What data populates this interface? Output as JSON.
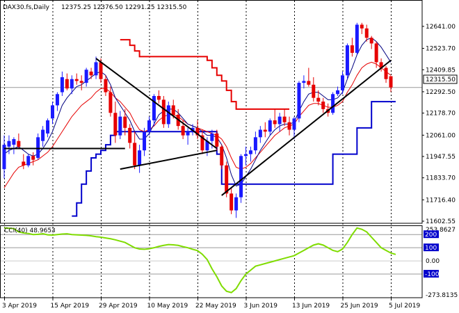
{
  "header": {
    "symbol": "DAX30.fs,Daily",
    "ohlc": "12375.25 12376.50 12291.25 12315.50"
  },
  "price_badge": "12315.50",
  "cci_header": "CCI(40) 48.9653",
  "colors": {
    "bull": "#1a1aff",
    "bear": "#e60000",
    "band_upper": "#e60000",
    "band_lower": "#0000cc",
    "ma_fast": "#000080",
    "ma_slow": "#e60000",
    "trend": "#000000",
    "cci_line": "#7fdc00",
    "badge_bg": "#0000cc",
    "badge_text": "#ffffff",
    "price_badge_bg": "#ffffff"
  },
  "chart_data": [
    {
      "type": "candlestick",
      "title": "DAX30.fs,Daily",
      "ylim": [
        11602.55,
        12700
      ],
      "y_ticks": [
        "12641.00",
        "12523.70",
        "12409.85",
        "12292.50",
        "12178.70",
        "12061.00",
        "11947.55",
        "11833.70",
        "11716.40",
        "11602.55"
      ],
      "x_ticks": [
        "3 Apr 2019",
        "15 Apr 2019",
        "29 Apr 2019",
        "10 May 2019",
        "22 May 2019",
        "3 Jun 2019",
        "13 Jun 2019",
        "25 Jun 2019",
        "5 Jul 2019"
      ],
      "x_tick_index": [
        0,
        10,
        20,
        30,
        40,
        50,
        60,
        70,
        80
      ],
      "grid": "vertical dotted at period separators",
      "candles": [
        {
          "o": 11880,
          "h": 12060,
          "l": 11830,
          "c": 12010
        },
        {
          "o": 12000,
          "h": 12060,
          "l": 11960,
          "c": 12030
        },
        {
          "o": 12010,
          "h": 12050,
          "l": 11960,
          "c": 12040
        },
        {
          "o": 12030,
          "h": 12070,
          "l": 11990,
          "c": 12000
        },
        {
          "o": 11920,
          "h": 11960,
          "l": 11880,
          "c": 11900
        },
        {
          "o": 11900,
          "h": 11960,
          "l": 11890,
          "c": 11950
        },
        {
          "o": 11950,
          "h": 11970,
          "l": 11900,
          "c": 11930
        },
        {
          "o": 11940,
          "h": 12070,
          "l": 11930,
          "c": 12050
        },
        {
          "o": 12030,
          "h": 12110,
          "l": 12000,
          "c": 12090
        },
        {
          "o": 12070,
          "h": 12150,
          "l": 12050,
          "c": 12140
        },
        {
          "o": 12150,
          "h": 12240,
          "l": 12120,
          "c": 12220
        },
        {
          "o": 12220,
          "h": 12290,
          "l": 12190,
          "c": 12280
        },
        {
          "o": 12290,
          "h": 12400,
          "l": 12270,
          "c": 12370
        },
        {
          "o": 12360,
          "h": 12390,
          "l": 12300,
          "c": 12310
        },
        {
          "o": 12310,
          "h": 12380,
          "l": 12280,
          "c": 12360
        },
        {
          "o": 12360,
          "h": 12390,
          "l": 12330,
          "c": 12350
        },
        {
          "o": 12350,
          "h": 12380,
          "l": 12300,
          "c": 12340
        },
        {
          "o": 12340,
          "h": 12420,
          "l": 12320,
          "c": 12410
        },
        {
          "o": 12400,
          "h": 12420,
          "l": 12360,
          "c": 12380
        },
        {
          "o": 12380,
          "h": 12480,
          "l": 12360,
          "c": 12450
        },
        {
          "o": 12450,
          "h": 12470,
          "l": 12340,
          "c": 12360
        },
        {
          "o": 12360,
          "h": 12380,
          "l": 12270,
          "c": 12290
        },
        {
          "o": 12290,
          "h": 12320,
          "l": 12160,
          "c": 12180
        },
        {
          "o": 12180,
          "h": 12240,
          "l": 12020,
          "c": 12060
        },
        {
          "o": 12060,
          "h": 12190,
          "l": 12040,
          "c": 12160
        },
        {
          "o": 12160,
          "h": 12200,
          "l": 12060,
          "c": 12100
        },
        {
          "o": 12100,
          "h": 12120,
          "l": 11990,
          "c": 12020
        },
        {
          "o": 12020,
          "h": 12080,
          "l": 11880,
          "c": 11900
        },
        {
          "o": 11900,
          "h": 12010,
          "l": 11860,
          "c": 11980
        },
        {
          "o": 11980,
          "h": 12100,
          "l": 11950,
          "c": 12080
        },
        {
          "o": 12080,
          "h": 12160,
          "l": 12060,
          "c": 12140
        },
        {
          "o": 12140,
          "h": 12280,
          "l": 12110,
          "c": 12270
        },
        {
          "o": 12270,
          "h": 12300,
          "l": 12230,
          "c": 12250
        },
        {
          "o": 12250,
          "h": 12270,
          "l": 12100,
          "c": 12120
        },
        {
          "o": 12120,
          "h": 12240,
          "l": 12100,
          "c": 12220
        },
        {
          "o": 12220,
          "h": 12250,
          "l": 12150,
          "c": 12170
        },
        {
          "o": 12170,
          "h": 12200,
          "l": 12090,
          "c": 12110
        },
        {
          "o": 12110,
          "h": 12140,
          "l": 12040,
          "c": 12060
        },
        {
          "o": 12060,
          "h": 12100,
          "l": 12010,
          "c": 12080
        },
        {
          "o": 12080,
          "h": 12120,
          "l": 12060,
          "c": 12100
        },
        {
          "o": 12100,
          "h": 12140,
          "l": 12040,
          "c": 12060
        },
        {
          "o": 12060,
          "h": 12090,
          "l": 11960,
          "c": 11980
        },
        {
          "o": 11980,
          "h": 12050,
          "l": 11950,
          "c": 12030
        },
        {
          "o": 12030,
          "h": 12090,
          "l": 11990,
          "c": 12070
        },
        {
          "o": 12070,
          "h": 12090,
          "l": 11980,
          "c": 12000
        },
        {
          "o": 12000,
          "h": 12010,
          "l": 11880,
          "c": 11900
        },
        {
          "o": 11900,
          "h": 11920,
          "l": 11730,
          "c": 11750
        },
        {
          "o": 11750,
          "h": 11780,
          "l": 11640,
          "c": 11660
        },
        {
          "o": 11660,
          "h": 11750,
          "l": 11620,
          "c": 11730
        },
        {
          "o": 11730,
          "h": 11960,
          "l": 11700,
          "c": 11950
        },
        {
          "o": 11950,
          "h": 12000,
          "l": 11900,
          "c": 11960
        },
        {
          "o": 11960,
          "h": 12000,
          "l": 11920,
          "c": 11980
        },
        {
          "o": 11980,
          "h": 12080,
          "l": 11960,
          "c": 12050
        },
        {
          "o": 12050,
          "h": 12110,
          "l": 12020,
          "c": 12090
        },
        {
          "o": 12090,
          "h": 12130,
          "l": 12050,
          "c": 12080
        },
        {
          "o": 12080,
          "h": 12150,
          "l": 12060,
          "c": 12140
        },
        {
          "o": 12140,
          "h": 12200,
          "l": 12100,
          "c": 12120
        },
        {
          "o": 12120,
          "h": 12180,
          "l": 12080,
          "c": 12160
        },
        {
          "o": 12160,
          "h": 12200,
          "l": 12110,
          "c": 12130
        },
        {
          "o": 12130,
          "h": 12160,
          "l": 12060,
          "c": 12090
        },
        {
          "o": 12090,
          "h": 12160,
          "l": 12040,
          "c": 12150
        },
        {
          "o": 12150,
          "h": 12350,
          "l": 12130,
          "c": 12340
        },
        {
          "o": 12340,
          "h": 12380,
          "l": 12310,
          "c": 12350
        },
        {
          "o": 12350,
          "h": 12420,
          "l": 12320,
          "c": 12330
        },
        {
          "o": 12330,
          "h": 12370,
          "l": 12240,
          "c": 12260
        },
        {
          "o": 12260,
          "h": 12300,
          "l": 12220,
          "c": 12240
        },
        {
          "o": 12240,
          "h": 12260,
          "l": 12180,
          "c": 12200
        },
        {
          "o": 12200,
          "h": 12230,
          "l": 12160,
          "c": 12180
        },
        {
          "o": 12180,
          "h": 12290,
          "l": 12170,
          "c": 12280
        },
        {
          "o": 12280,
          "h": 12320,
          "l": 12270,
          "c": 12300
        },
        {
          "o": 12300,
          "h": 12400,
          "l": 12280,
          "c": 12380
        },
        {
          "o": 12380,
          "h": 12550,
          "l": 12360,
          "c": 12540
        },
        {
          "o": 12540,
          "h": 12580,
          "l": 12480,
          "c": 12500
        },
        {
          "o": 12500,
          "h": 12660,
          "l": 12490,
          "c": 12650
        },
        {
          "o": 12650,
          "h": 12660,
          "l": 12600,
          "c": 12630
        },
        {
          "o": 12630,
          "h": 12650,
          "l": 12560,
          "c": 12580
        },
        {
          "o": 12580,
          "h": 12590,
          "l": 12520,
          "c": 12550
        },
        {
          "o": 12550,
          "h": 12560,
          "l": 12420,
          "c": 12450
        },
        {
          "o": 12450,
          "h": 12470,
          "l": 12400,
          "c": 12420
        },
        {
          "o": 12420,
          "h": 12430,
          "l": 12340,
          "c": 12360
        },
        {
          "o": 12375.25,
          "h": 12376.5,
          "l": 12291.25,
          "c": 12315.5
        }
      ],
      "ma_fast": [
        11960,
        11980,
        11990,
        12000,
        11980,
        11960,
        11950,
        11960,
        11990,
        12030,
        12080,
        12150,
        12220,
        12260,
        12290,
        12320,
        12330,
        12350,
        12370,
        12390,
        12400,
        12380,
        12330,
        12260,
        12220,
        12180,
        12140,
        12080,
        12040,
        12040,
        12070,
        12120,
        12170,
        12190,
        12200,
        12200,
        12180,
        12150,
        12120,
        12110,
        12100,
        12080,
        12060,
        12060,
        12050,
        12010,
        11940,
        11850,
        11790,
        11800,
        11840,
        11880,
        11930,
        11980,
        12020,
        12060,
        12090,
        12110,
        12120,
        12120,
        12130,
        12190,
        12240,
        12280,
        12290,
        12290,
        12270,
        12250,
        12250,
        12260,
        12290,
        12360,
        12420,
        12490,
        12540,
        12570,
        12580,
        12560,
        12530,
        12490,
        12450
      ],
      "ma_slow": [
        11780,
        11820,
        11860,
        11890,
        11900,
        11910,
        11920,
        11930,
        11950,
        11970,
        12000,
        12040,
        12080,
        12120,
        12160,
        12190,
        12220,
        12240,
        12260,
        12290,
        12310,
        12310,
        12290,
        12260,
        12240,
        12210,
        12180,
        12130,
        12090,
        12080,
        12090,
        12110,
        12140,
        12160,
        12170,
        12170,
        12160,
        12140,
        12120,
        12110,
        12100,
        12090,
        12080,
        12070,
        12060,
        12040,
        12000,
        11940,
        11890,
        11880,
        11890,
        11910,
        11940,
        11970,
        12000,
        12030,
        12060,
        12080,
        12100,
        12110,
        12120,
        12160,
        12190,
        12220,
        12230,
        12230,
        12220,
        12210,
        12210,
        12220,
        12240,
        12290,
        12330,
        12380,
        12420,
        12440,
        12450,
        12440,
        12420,
        12400,
        12380
      ],
      "band_upper": [
        null,
        null,
        null,
        null,
        null,
        null,
        null,
        null,
        null,
        null,
        null,
        null,
        null,
        null,
        null,
        null,
        null,
        null,
        null,
        null,
        null,
        null,
        null,
        null,
        12570,
        12570,
        12540,
        12510,
        12480,
        12480,
        12480,
        12480,
        12480,
        12480,
        12480,
        12480,
        12480,
        12480,
        12480,
        12480,
        12480,
        12480,
        12460,
        12420,
        12380,
        12350,
        12300,
        12240,
        12200,
        12200,
        12200,
        12200,
        12200,
        12200,
        12200,
        12200,
        12200,
        12200,
        12200,
        12200
      ],
      "band_lower": [
        null,
        null,
        null,
        null,
        null,
        null,
        null,
        null,
        null,
        null,
        null,
        null,
        null,
        null,
        11630,
        11700,
        11800,
        11870,
        11940,
        11960,
        11980,
        12010,
        12060,
        12080,
        12080,
        12080,
        12080,
        12080,
        12080,
        12080,
        12080,
        12080,
        12080,
        12080,
        12080,
        12080,
        12080,
        12080,
        12080,
        12080,
        12080,
        12080,
        12080,
        12080,
        11960,
        11800,
        11800,
        11800,
        11800,
        11800,
        11800,
        11800,
        11800,
        11800,
        11800,
        11800,
        11800,
        11800,
        11800,
        11800,
        11800,
        11800,
        11800,
        11800,
        11800,
        11800,
        11800,
        11800,
        11960,
        11960,
        11960,
        11960,
        11960,
        12100,
        12100,
        12100,
        12240,
        12240,
        12240,
        12240,
        12240,
        12240
      ],
      "trendlines": [
        {
          "from": [
            0,
            11990
          ],
          "to": [
            25,
            11990
          ]
        },
        {
          "from": [
            19,
            12470
          ],
          "to": [
            44,
            11990
          ]
        },
        {
          "from": [
            24,
            11880
          ],
          "to": [
            44,
            11980
          ]
        },
        {
          "from": [
            45,
            11740
          ],
          "to": [
            80,
            12460
          ]
        }
      ]
    },
    {
      "type": "line",
      "title": "CCI(40) 48.9653",
      "ylim": [
        -273.8135,
        253.8627
      ],
      "y_ticks": [
        "253.8627",
        "200",
        "100",
        "0.00",
        "-100",
        "-273.8135"
      ],
      "levels": [
        200,
        100,
        -100
      ],
      "values": [
        250,
        248,
        245,
        220,
        212,
        208,
        200,
        202,
        206,
        198,
        196,
        200,
        204,
        206,
        200,
        198,
        196,
        194,
        190,
        184,
        180,
        174,
        168,
        160,
        150,
        140,
        120,
        100,
        90,
        88,
        92,
        100,
        110,
        118,
        124,
        122,
        118,
        108,
        100,
        88,
        78,
        50,
        10,
        -60,
        -120,
        -190,
        -230,
        -240,
        -210,
        -150,
        -100,
        -70,
        -40,
        -30,
        -20,
        -10,
        0,
        10,
        20,
        30,
        40,
        60,
        80,
        100,
        120,
        130,
        120,
        100,
        80,
        70,
        90,
        140,
        200,
        250,
        240,
        220,
        180,
        140,
        100,
        80,
        60,
        48.9653
      ]
    }
  ]
}
